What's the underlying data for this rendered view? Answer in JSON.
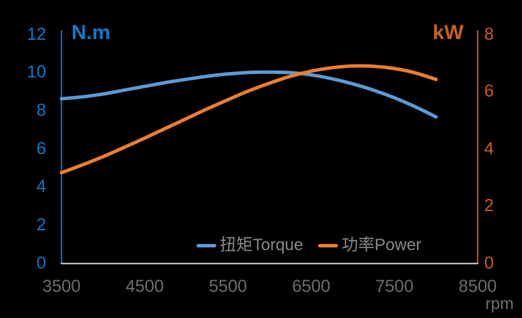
{
  "chart": {
    "left_axis": {
      "title": "N.m",
      "ticks": [
        0,
        2,
        4,
        6,
        8,
        10,
        12
      ],
      "color": "#0F7AC8"
    },
    "right_axis": {
      "title": "kW",
      "ticks": [
        0,
        2,
        4,
        6,
        8
      ],
      "color": "#C9601A"
    },
    "x_axis": {
      "title": "rpm",
      "ticks": [
        3500,
        4500,
        5500,
        6500,
        7500,
        8500
      ],
      "color": "#6E6E6E"
    },
    "baseline_color": "#D9D9D9",
    "legend_text_color": "#8A8A8A",
    "legend": [
      {
        "label": "扭矩Torque",
        "color": "#5B9BD5"
      },
      {
        "label": "功率Power",
        "color": "#ED7D31"
      }
    ]
  },
  "chart_data": {
    "type": "line",
    "title": "",
    "xlabel": "rpm",
    "ylabel_left": "N.m",
    "ylabel_right": "kW",
    "xlim": [
      3500,
      8500
    ],
    "ylim_left": [
      0,
      12
    ],
    "ylim_right": [
      0,
      8
    ],
    "grid": false,
    "legend_position": "bottom-center",
    "x": [
      3500,
      3750,
      4000,
      4250,
      4500,
      4750,
      5000,
      5250,
      5500,
      5750,
      6000,
      6250,
      6500,
      6750,
      7000,
      7250,
      7500,
      7750,
      8000
    ],
    "series": [
      {
        "name": "扭矩Torque",
        "axis": "left",
        "units": "N.m",
        "color": "#5B9BD5",
        "values": [
          8.6,
          8.7,
          8.85,
          9.05,
          9.25,
          9.45,
          9.62,
          9.78,
          9.9,
          9.98,
          10.0,
          9.97,
          9.85,
          9.65,
          9.38,
          9.05,
          8.65,
          8.18,
          7.65
        ]
      },
      {
        "name": "功率Power",
        "axis": "right",
        "units": "kW",
        "color": "#ED7D31",
        "values": [
          3.15,
          3.42,
          3.71,
          4.03,
          4.36,
          4.7,
          5.04,
          5.38,
          5.7,
          6.01,
          6.28,
          6.52,
          6.7,
          6.82,
          6.88,
          6.87,
          6.79,
          6.64,
          6.41
        ]
      }
    ]
  }
}
